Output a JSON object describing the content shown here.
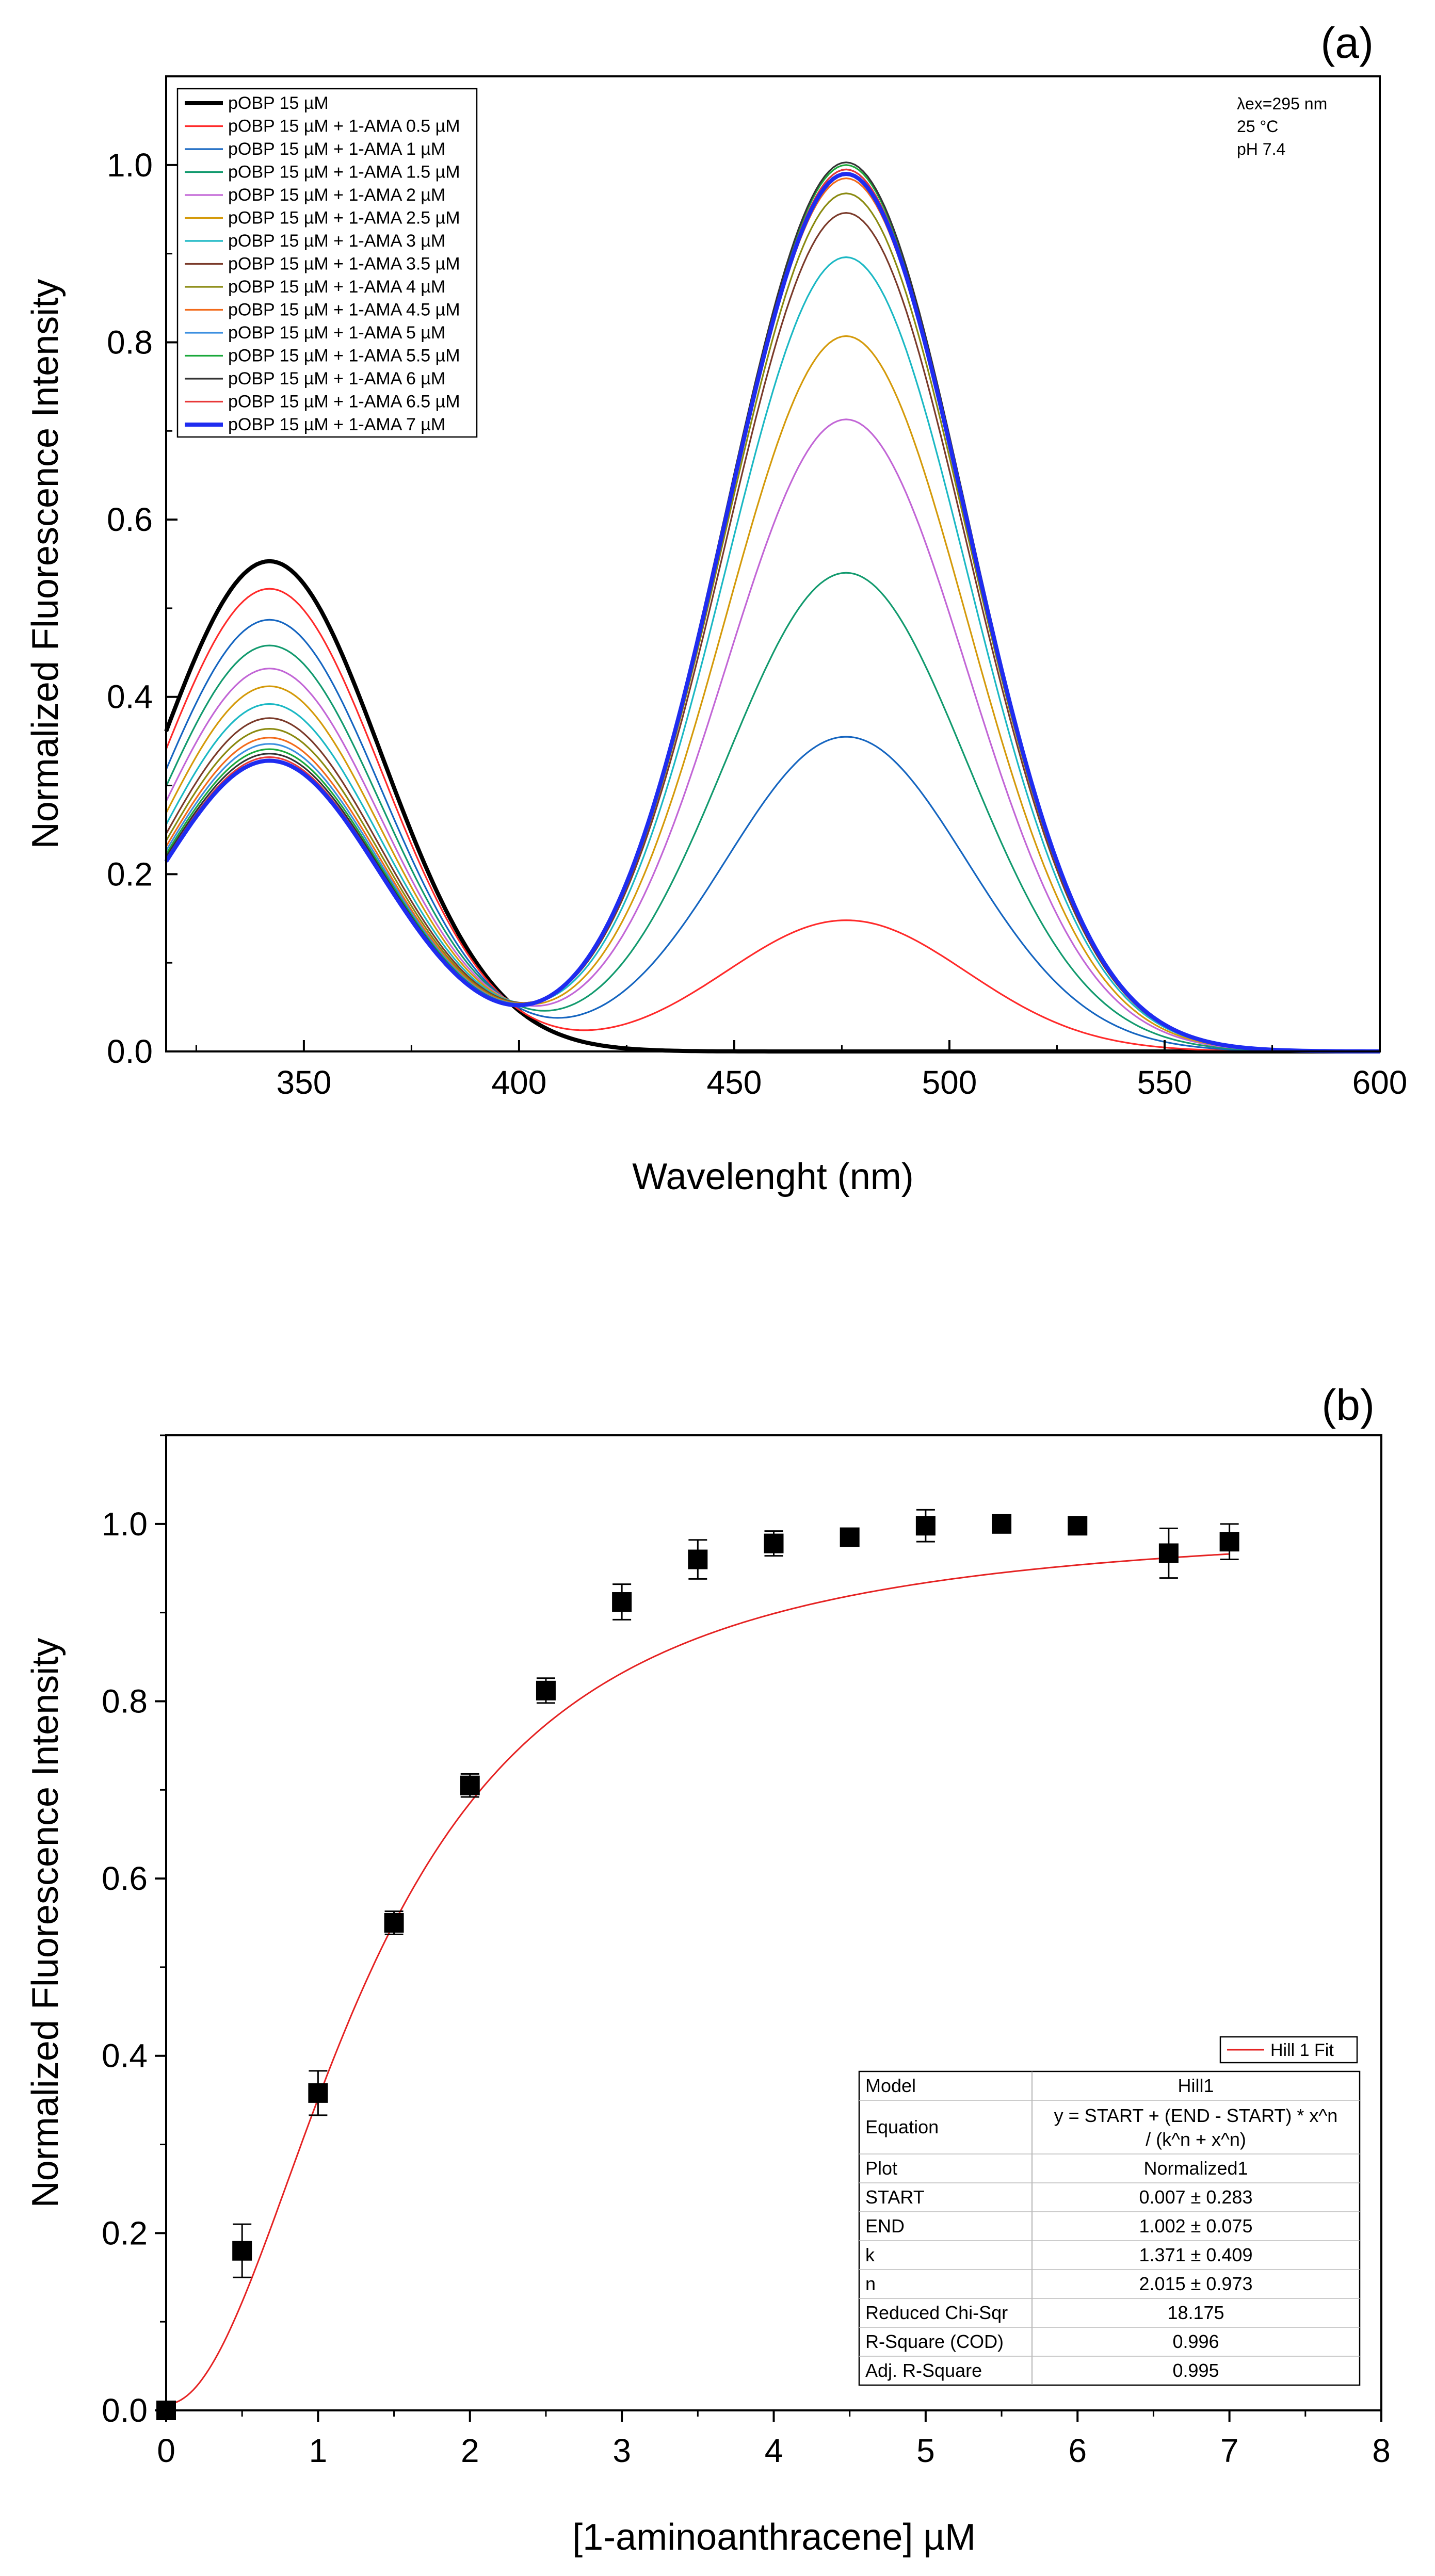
{
  "colors": {
    "curves": [
      "#000000",
      "#ff2a2a",
      "#1565c0",
      "#129a6e",
      "#c266d6",
      "#d49a0a",
      "#1bb8c4",
      "#7a3a2a",
      "#8a8a10",
      "#f26a1a",
      "#3b8fe0",
      "#1aa83a",
      "#333333",
      "#e83838",
      "#1f2cf0"
    ],
    "fit": "#e52222",
    "marker": "#000000"
  },
  "panel_a": {
    "panel_label": "(a)",
    "conditions": [
      "λex=295 nm",
      "25 °C",
      "pH 7.4"
    ],
    "chart_data": {
      "type": "line",
      "title": "",
      "xlabel": "Wavelenght (nm)",
      "ylabel": "Normalized Fluorescence Intensity",
      "xlim": [
        318,
        600
      ],
      "ylim": [
        0,
        1.1
      ],
      "xticks": [
        350,
        400,
        450,
        500,
        550,
        600
      ],
      "yticks": [
        0.0,
        0.2,
        0.4,
        0.6,
        0.8,
        1.0
      ],
      "ytick_labels": [
        "0.0",
        "0.2",
        "0.4",
        "0.6",
        "0.8",
        "1.0"
      ],
      "legend_position": "top-left",
      "model_note": "each series = Gaussian band at 342 nm + Gaussian band at 476 nm (peak heights listed)",
      "series": [
        {
          "name": "pOBP 15 µM",
          "peak_342nm": 0.553,
          "peak_476nm": 0.0
        },
        {
          "name": "pOBP 15 µM + 1-AMA 0.5 µM",
          "peak_342nm": 0.522,
          "peak_476nm": 0.148
        },
        {
          "name": "pOBP 15 µM + 1-AMA 1 µM",
          "peak_342nm": 0.487,
          "peak_476nm": 0.355
        },
        {
          "name": "pOBP 15 µM + 1-AMA 1.5 µM",
          "peak_342nm": 0.458,
          "peak_476nm": 0.54
        },
        {
          "name": "pOBP 15 µM + 1-AMA 2 µM",
          "peak_342nm": 0.432,
          "peak_476nm": 0.713
        },
        {
          "name": "pOBP 15 µM + 1-AMA 2.5 µM",
          "peak_342nm": 0.412,
          "peak_476nm": 0.807
        },
        {
          "name": "pOBP 15 µM + 1-AMA 3 µM",
          "peak_342nm": 0.392,
          "peak_476nm": 0.896
        },
        {
          "name": "pOBP 15 µM + 1-AMA 3.5 µM",
          "peak_342nm": 0.376,
          "peak_476nm": 0.946
        },
        {
          "name": "pOBP 15 µM + 1-AMA 4 µM",
          "peak_342nm": 0.364,
          "peak_476nm": 0.968
        },
        {
          "name": "pOBP 15 µM + 1-AMA 4.5 µM",
          "peak_342nm": 0.354,
          "peak_476nm": 0.985
        },
        {
          "name": "pOBP 15 µM + 1-AMA 5 µM",
          "peak_342nm": 0.347,
          "peak_476nm": 0.995
        },
        {
          "name": "pOBP 15 µM + 1-AMA 5.5 µM",
          "peak_342nm": 0.341,
          "peak_476nm": 1.0
        },
        {
          "name": "pOBP 15 µM + 1-AMA 6 µM",
          "peak_342nm": 0.336,
          "peak_476nm": 1.003
        },
        {
          "name": "pOBP 15 µM + 1-AMA 6.5 µM",
          "peak_342nm": 0.332,
          "peak_476nm": 0.995
        },
        {
          "name": "pOBP 15 µM + 1-AMA 7 µM",
          "peak_342nm": 0.328,
          "peak_476nm": 0.99
        }
      ]
    }
  },
  "panel_b": {
    "panel_label": "(b)",
    "chart_data": {
      "type": "scatter",
      "title": "",
      "xlabel": "[1-aminoanthracene] µM",
      "ylabel": "Normalized Fluorescence Intensity",
      "xlim": [
        0,
        8
      ],
      "ylim": [
        0,
        1.1
      ],
      "xticks": [
        0,
        1,
        2,
        3,
        4,
        5,
        6,
        7,
        8
      ],
      "yticks": [
        0.0,
        0.2,
        0.4,
        0.6,
        0.8,
        1.0
      ],
      "ytick_labels": [
        "0.0",
        "0.2",
        "0.4",
        "0.6",
        "0.8",
        "1.0"
      ],
      "points": [
        {
          "x": 0,
          "y": 0.0,
          "err": 0.0
        },
        {
          "x": 0.5,
          "y": 0.18,
          "err": 0.03
        },
        {
          "x": 1.0,
          "y": 0.358,
          "err": 0.025
        },
        {
          "x": 1.5,
          "y": 0.55,
          "err": 0.013
        },
        {
          "x": 2.0,
          "y": 0.705,
          "err": 0.013
        },
        {
          "x": 2.5,
          "y": 0.812,
          "err": 0.014
        },
        {
          "x": 3.0,
          "y": 0.912,
          "err": 0.02
        },
        {
          "x": 3.5,
          "y": 0.96,
          "err": 0.022
        },
        {
          "x": 4.0,
          "y": 0.978,
          "err": 0.014
        },
        {
          "x": 4.5,
          "y": 0.985,
          "err": 0.0
        },
        {
          "x": 5.0,
          "y": 0.998,
          "err": 0.018
        },
        {
          "x": 5.5,
          "y": 1.0,
          "err": 0.0
        },
        {
          "x": 6.0,
          "y": 0.998,
          "err": 0.0
        },
        {
          "x": 6.6,
          "y": 0.967,
          "err": 0.028
        },
        {
          "x": 7.0,
          "y": 0.98,
          "err": 0.02
        }
      ],
      "fit": {
        "name": "Hill 1 Fit",
        "start": 0.007,
        "end": 1.002,
        "k": 1.371,
        "n": 2.015
      },
      "legend_position": "bottom-right",
      "fit_table": [
        {
          "label": "Model",
          "value": "Hill1"
        },
        {
          "label": "Equation",
          "value_lines": [
            "y = START + (END - START) * x^n",
            "/  (k^n  +  x^n)"
          ]
        },
        {
          "label": "Plot",
          "value": "Normalized1"
        },
        {
          "label": "START",
          "value": "0.007 ± 0.283"
        },
        {
          "label": "END",
          "value": "1.002 ± 0.075"
        },
        {
          "label": "k",
          "value": "1.371 ± 0.409"
        },
        {
          "label": "n",
          "value": "2.015 ± 0.973"
        },
        {
          "label": "Reduced Chi-Sqr",
          "value": "18.175"
        },
        {
          "label": "R-Square (COD)",
          "value": "0.996"
        },
        {
          "label": "Adj. R-Square",
          "value": "0.995"
        }
      ]
    }
  }
}
